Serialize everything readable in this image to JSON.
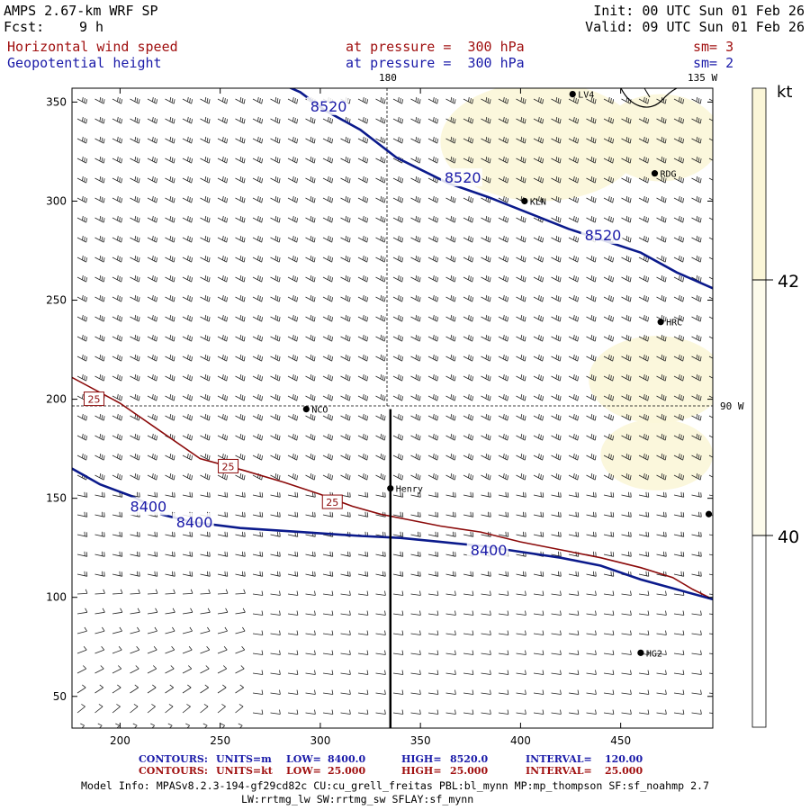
{
  "header": {
    "model": "AMPS 2.67-km WRF SP",
    "fcst_label": "Fcst:",
    "fcst_value": "9 h",
    "init": "Init: 00 UTC Sun 01 Feb 26",
    "valid": "Valid: 09 UTC Sun 01 Feb 26",
    "field1_name": "Horizontal wind speed",
    "field1_level": "at pressure =  300 hPa",
    "field1_sm": "sm= 3",
    "field2_name": "Geopotential height",
    "field2_level": "at pressure =  300 hPa",
    "field2_sm": "sm= 2"
  },
  "map": {
    "grid_labels": {
      "top": "180",
      "top_right": "135 W",
      "right": "90 W"
    },
    "x_ticks": [
      "200",
      "250",
      "300",
      "350",
      "400",
      "450"
    ],
    "y_ticks": [
      "50",
      "100",
      "150",
      "200",
      "250",
      "300",
      "350"
    ],
    "x_tick_values": [
      200,
      250,
      300,
      350,
      400,
      450
    ],
    "y_tick_values": [
      50,
      100,
      150,
      200,
      250,
      300,
      350
    ],
    "x_range": [
      176,
      496
    ],
    "y_range": [
      34,
      357
    ],
    "stations": [
      {
        "name": "KLN",
        "x": 402,
        "y": 300
      },
      {
        "name": "RDG",
        "x": 467,
        "y": 314
      },
      {
        "name": "HRC",
        "x": 470,
        "y": 239
      },
      {
        "name": "NCO",
        "x": 293,
        "y": 195
      },
      {
        "name": "Henry",
        "x": 335,
        "y": 155
      },
      {
        "name": "HG2",
        "x": 460,
        "y": 72
      },
      {
        "name": "LV4",
        "x": 426,
        "y": 354
      },
      {
        "name": "",
        "x": 494,
        "y": 142
      }
    ],
    "height_contours": [
      {
        "value": 8520,
        "label": "8520",
        "points": [
          [
            281,
            359
          ],
          [
            290,
            355
          ],
          [
            302,
            346
          ],
          [
            320,
            336
          ],
          [
            338,
            322
          ],
          [
            350,
            316
          ],
          [
            364,
            309
          ],
          [
            384,
            302
          ],
          [
            404,
            294
          ],
          [
            424,
            286
          ],
          [
            442,
            280
          ],
          [
            460,
            274
          ],
          [
            478,
            264
          ],
          [
            496,
            256
          ]
        ],
        "label_positions": [
          [
            295,
            348
          ],
          [
            362,
            312
          ],
          [
            432,
            283
          ]
        ]
      },
      {
        "value": 8400,
        "label": "8400",
        "points": [
          [
            176,
            165
          ],
          [
            190,
            157
          ],
          [
            206,
            151
          ],
          [
            214,
            147
          ]
        ],
        "label_positions": []
      },
      {
        "value": 8400,
        "label": "8400",
        "points": [
          [
            220,
            142
          ],
          [
            236,
            138
          ],
          [
            260,
            135
          ],
          [
            290,
            133
          ],
          [
            320,
            131
          ],
          [
            340,
            130
          ],
          [
            360,
            128
          ],
          [
            380,
            126
          ],
          [
            400,
            123
          ],
          [
            420,
            120
          ],
          [
            440,
            116
          ],
          [
            460,
            109
          ],
          [
            478,
            104
          ],
          [
            496,
            99
          ]
        ],
        "label_positions": [
          [
            205,
            146
          ],
          [
            228,
            138
          ],
          [
            375,
            124
          ]
        ]
      }
    ],
    "speed_contours": [
      {
        "value": 25,
        "label": "25",
        "points": [
          [
            176,
            211
          ],
          [
            200,
            198
          ],
          [
            220,
            184
          ],
          [
            240,
            170
          ],
          [
            262,
            164
          ],
          [
            282,
            158
          ],
          [
            300,
            152
          ],
          [
            316,
            146
          ],
          [
            330,
            142
          ],
          [
            345,
            139
          ],
          [
            360,
            136
          ],
          [
            380,
            133
          ],
          [
            400,
            128
          ],
          [
            420,
            124
          ],
          [
            440,
            120
          ],
          [
            460,
            115
          ],
          [
            476,
            110
          ],
          [
            486,
            104
          ],
          [
            494,
            100
          ]
        ],
        "label_positions": [
          [
            187,
            200
          ],
          [
            254,
            166
          ],
          [
            306,
            148
          ]
        ]
      }
    ],
    "shade_regions": [
      {
        "x": 410,
        "y": 330,
        "rx": 50,
        "ry": 30
      },
      {
        "x": 470,
        "y": 332,
        "rx": 30,
        "ry": 22
      },
      {
        "x": 468,
        "y": 210,
        "rx": 34,
        "ry": 22
      },
      {
        "x": 468,
        "y": 172,
        "rx": 28,
        "ry": 18
      }
    ],
    "section_line": {
      "x": 335,
      "y_top": 195,
      "y_bottom": 34
    }
  },
  "colorbar": {
    "unit": "kt",
    "labels": [
      "42",
      "40"
    ],
    "label_values": [
      42,
      40
    ],
    "range": [
      38.5,
      43.5
    ],
    "colors": {
      "high": "#fbf6d8",
      "mid": "#fdfbec",
      "low": "#ffffff"
    }
  },
  "footer": {
    "line1_prefix": "CONTOURS:",
    "line1_units": "UNITS=m",
    "line1_low_label": "LOW=",
    "line1_low": "8400.0",
    "line1_high_label": "HIGH=",
    "line1_high": "8520.0",
    "line1_int_label": "INTERVAL=",
    "line1_int": "120.00",
    "line2_prefix": "CONTOURS:",
    "line2_units": "UNITS=kt",
    "line2_low_label": "LOW=",
    "line2_low": "25.000",
    "line2_high_label": "HIGH=",
    "line2_high": "25.000",
    "line2_int_label": "INTERVAL=",
    "line2_int": "25.000",
    "model_info": "Model Info: MPASv8.2.3-194-gf29cd82c CU:cu_grell_freitas PBL:bl_mynn MP:mp_thompson SF:sf_noahmp 2.7",
    "model_info2": "LW:rrtmg_lw SW:rrtmg_sw SFLAY:sf_mynn"
  },
  "colors": {
    "height": "#0b1a8c",
    "speed": "#8b0a0a",
    "label_blue": "#1a1aa8",
    "label_red": "#a01010"
  }
}
